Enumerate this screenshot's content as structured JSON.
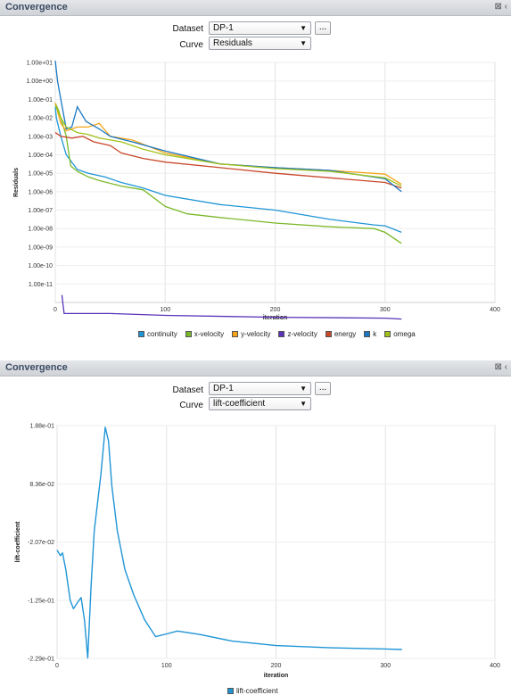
{
  "panel1": {
    "title": "Convergence",
    "dataset_label": "Dataset",
    "dataset_value": "DP-1",
    "curve_label": "Curve",
    "curve_value": "Residuals",
    "ellipsis": "..."
  },
  "panel2": {
    "title": "Convergence",
    "dataset_label": "Dataset",
    "dataset_value": "DP-1",
    "curve_label": "Curve",
    "curve_value": "lift-coefficient",
    "ellipsis": "..."
  },
  "chart_data": [
    {
      "type": "line",
      "ylabel": "Residuals",
      "xlabel": "iteration",
      "yscale": "log",
      "xlim": [
        0,
        400
      ],
      "ylim_exp": [
        -12,
        1
      ],
      "x_ticks": [
        "0",
        "100",
        "200",
        "300",
        "400"
      ],
      "y_ticks": [
        "1.00e+01",
        "1.00e+00",
        "1.00e-01",
        "1.00e-02",
        "1.00e-03",
        "1.00e-04",
        "1.00e-05",
        "1.00e-06",
        "1.00e-07",
        "1.00e-08",
        "1.00e-09",
        "1.00e-10",
        "1.00e-11"
      ],
      "grid": true,
      "legend_position": "bottom",
      "series": [
        {
          "name": "continuity",
          "color": "#1f95d6",
          "log10_points": [
            [
              0,
              -1.4
            ],
            [
              1,
              -2.0
            ],
            [
              5,
              -3.0
            ],
            [
              10,
              -4.0
            ],
            [
              20,
              -4.8
            ],
            [
              30,
              -5.0
            ],
            [
              45,
              -5.2
            ],
            [
              60,
              -5.5
            ],
            [
              80,
              -5.8
            ],
            [
              100,
              -6.2
            ],
            [
              150,
              -6.7
            ],
            [
              200,
              -7.0
            ],
            [
              250,
              -7.5
            ],
            [
              290,
              -7.8
            ],
            [
              300,
              -7.85
            ],
            [
              315,
              -8.2
            ]
          ]
        },
        {
          "name": "x-velocity",
          "color": "#7ab929",
          "log10_points": [
            [
              0,
              -1.2
            ],
            [
              3,
              -1.6
            ],
            [
              6,
              -2.2
            ],
            [
              10,
              -3.0
            ],
            [
              14,
              -4.6
            ],
            [
              20,
              -4.9
            ],
            [
              30,
              -5.2
            ],
            [
              40,
              -5.4
            ],
            [
              60,
              -5.7
            ],
            [
              80,
              -5.9
            ],
            [
              100,
              -6.8
            ],
            [
              120,
              -7.2
            ],
            [
              150,
              -7.4
            ],
            [
              200,
              -7.7
            ],
            [
              250,
              -7.9
            ],
            [
              290,
              -8.0
            ],
            [
              300,
              -8.2
            ],
            [
              315,
              -8.8
            ]
          ]
        },
        {
          "name": "y-velocity",
          "color": "#f4a51a",
          "log10_points": [
            [
              0,
              -1.2
            ],
            [
              5,
              -2.3
            ],
            [
              10,
              -2.7
            ],
            [
              20,
              -2.5
            ],
            [
              30,
              -2.5
            ],
            [
              40,
              -2.3
            ],
            [
              50,
              -3.0
            ],
            [
              70,
              -3.2
            ],
            [
              100,
              -3.9
            ],
            [
              150,
              -4.5
            ],
            [
              200,
              -4.7
            ],
            [
              250,
              -4.85
            ],
            [
              300,
              -5.05
            ],
            [
              315,
              -5.6
            ]
          ]
        },
        {
          "name": "z-velocity",
          "color": "#5a33b8",
          "log10_points": [
            [
              6,
              -11.6
            ],
            [
              8,
              -12.6
            ],
            [
              50,
              -12.6
            ],
            [
              100,
              -12.7
            ],
            [
              200,
              -12.8
            ],
            [
              300,
              -12.85
            ],
            [
              315,
              -12.9
            ]
          ]
        },
        {
          "name": "energy",
          "color": "#c9482a",
          "log10_points": [
            [
              0,
              -2.8
            ],
            [
              5,
              -3.0
            ],
            [
              15,
              -3.1
            ],
            [
              25,
              -3.0
            ],
            [
              35,
              -3.3
            ],
            [
              50,
              -3.5
            ],
            [
              60,
              -3.9
            ],
            [
              80,
              -4.2
            ],
            [
              100,
              -4.4
            ],
            [
              150,
              -4.7
            ],
            [
              200,
              -5.0
            ],
            [
              250,
              -5.25
            ],
            [
              300,
              -5.5
            ],
            [
              315,
              -5.8
            ]
          ]
        },
        {
          "name": "k",
          "color": "#1a78c2",
          "log10_points": [
            [
              0,
              1.1
            ],
            [
              2,
              0.0
            ],
            [
              5,
              -1.0
            ],
            [
              10,
              -2.6
            ],
            [
              15,
              -2.5
            ],
            [
              20,
              -1.4
            ],
            [
              28,
              -2.2
            ],
            [
              40,
              -2.6
            ],
            [
              50,
              -3.0
            ],
            [
              70,
              -3.3
            ],
            [
              100,
              -3.8
            ],
            [
              150,
              -4.5
            ],
            [
              200,
              -4.7
            ],
            [
              250,
              -4.85
            ],
            [
              300,
              -5.3
            ],
            [
              315,
              -6.0
            ]
          ]
        },
        {
          "name": "omega",
          "color": "#a0c219",
          "log10_points": [
            [
              0,
              -1.3
            ],
            [
              5,
              -2.0
            ],
            [
              10,
              -2.5
            ],
            [
              20,
              -2.8
            ],
            [
              30,
              -2.9
            ],
            [
              40,
              -3.1
            ],
            [
              60,
              -3.3
            ],
            [
              80,
              -3.7
            ],
            [
              100,
              -4.0
            ],
            [
              150,
              -4.5
            ],
            [
              200,
              -4.75
            ],
            [
              250,
              -4.9
            ],
            [
              300,
              -5.25
            ],
            [
              315,
              -5.7
            ]
          ]
        }
      ]
    },
    {
      "type": "line",
      "ylabel": "lift-coefficient",
      "xlabel": "iteration",
      "xlim": [
        0,
        400
      ],
      "ylim": [
        -0.229,
        0.188
      ],
      "x_ticks": [
        "0",
        "100",
        "200",
        "300",
        "400"
      ],
      "y_ticks": [
        "1.88e-01",
        "8.36e-02",
        "-2.07e-02",
        "-1.25e-01",
        "-2.29e-01"
      ],
      "grid": true,
      "legend_position": "bottom",
      "series": [
        {
          "name": "lift-coefficient",
          "color": "#1f95d6",
          "points": [
            [
              0,
              -0.035
            ],
            [
              3,
              -0.045
            ],
            [
              5,
              -0.04
            ],
            [
              8,
              -0.07
            ],
            [
              12,
              -0.125
            ],
            [
              15,
              -0.14
            ],
            [
              19,
              -0.128
            ],
            [
              22,
              -0.12
            ],
            [
              25,
              -0.16
            ],
            [
              28,
              -0.228
            ],
            [
              31,
              -0.1
            ],
            [
              34,
              0.0
            ],
            [
              37,
              0.05
            ],
            [
              40,
              0.1
            ],
            [
              44,
              0.185
            ],
            [
              47,
              0.16
            ],
            [
              50,
              0.08
            ],
            [
              55,
              0.0
            ],
            [
              62,
              -0.07
            ],
            [
              70,
              -0.115
            ],
            [
              80,
              -0.16
            ],
            [
              90,
              -0.19
            ],
            [
              100,
              -0.185
            ],
            [
              110,
              -0.18
            ],
            [
              130,
              -0.186
            ],
            [
              160,
              -0.198
            ],
            [
              200,
              -0.206
            ],
            [
              250,
              -0.21
            ],
            [
              300,
              -0.212
            ],
            [
              315,
              -0.213
            ]
          ]
        }
      ]
    }
  ]
}
